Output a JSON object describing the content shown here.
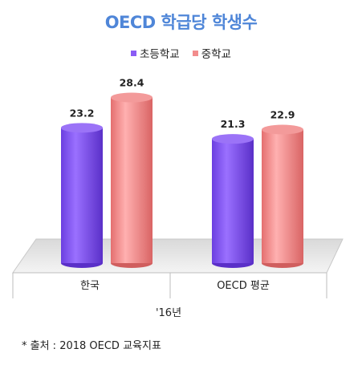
{
  "colors": {
    "title": "#4f86d8",
    "series_1": "#8a5cf5",
    "series_2": "#f28c8c"
  },
  "chart_data": {
    "type": "bar",
    "title": "OECD 학급당 학생수",
    "categories": [
      "한국",
      "OECD 평균"
    ],
    "series": [
      {
        "name": "초등학교",
        "values": [
          23.2,
          21.3
        ]
      },
      {
        "name": "중학교",
        "values": [
          28.4,
          22.9
        ]
      }
    ],
    "xlabel": "'16년",
    "ylabel": "",
    "ylim": [
      0,
      30
    ],
    "legend_position": "top",
    "grid": false
  },
  "source": "* 출처 : 2018 OECD 교육지표"
}
